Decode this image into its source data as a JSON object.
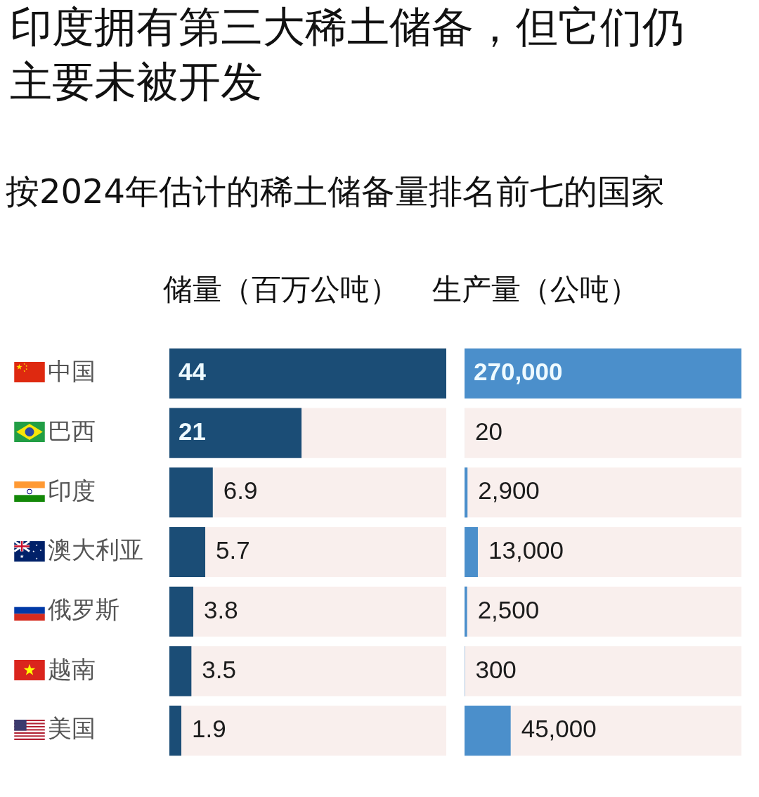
{
  "chart_data": [
    {
      "type": "bar",
      "orientation": "horizontal",
      "title": "印度拥有第三大稀土储备，但它们仍主要未被开发",
      "subtitle": "按2024年估计的稀土储备量排名前七的国家",
      "xlabel": "储量（百万公吨）",
      "categories": [
        "中国",
        "巴西",
        "印度",
        "澳大利亚",
        "俄罗斯",
        "越南",
        "美国"
      ],
      "values": [
        44,
        21,
        6.9,
        5.7,
        3.8,
        3.5,
        1.9
      ],
      "color": "#1b4d76",
      "xlim": [
        0,
        44
      ],
      "data_labels": true,
      "tick_labels": "y"
    },
    {
      "type": "bar",
      "orientation": "horizontal",
      "xlabel": "生产量（公吨）",
      "categories": [
        null,
        null,
        null,
        null,
        null,
        null,
        null
      ],
      "values": [
        270000,
        20,
        2900,
        13000,
        2500,
        300,
        45000
      ],
      "value_labels": [
        "270,000",
        "20",
        "2,900",
        "13,000",
        "2,500",
        "300",
        "45,000"
      ],
      "color": "#4b8fcb",
      "xlim": [
        0,
        270000
      ],
      "tick_labels": "y"
    }
  ]
}
